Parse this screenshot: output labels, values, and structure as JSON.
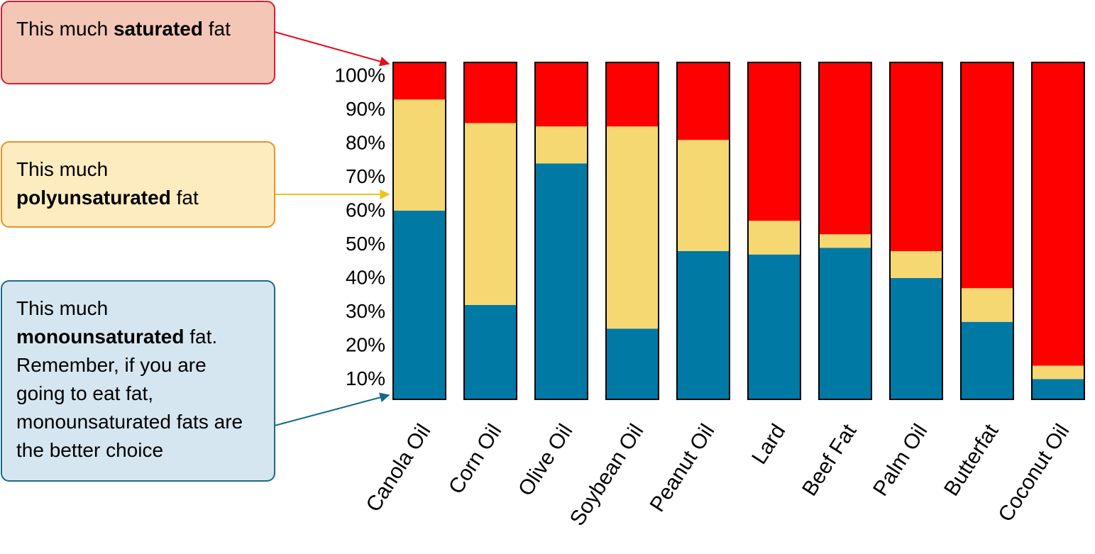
{
  "chart_data": {
    "type": "bar",
    "stacked": true,
    "categories": [
      "Canola Oil",
      "Corn Oil",
      "Olive Oil",
      "Soybean Oil",
      "Peanut Oil",
      "Lard",
      "Beef Fat",
      "Palm Oil",
      "Butterfat",
      "Coconut Oil"
    ],
    "series": [
      {
        "color": "#0079a5",
        "values": [
          56,
          28,
          70,
          21,
          44,
          43,
          45,
          36,
          23,
          6
        ]
      },
      {
        "color": "#f6d872",
        "values": [
          33,
          54,
          11,
          60,
          33,
          10,
          4,
          8,
          10,
          4
        ]
      },
      {
        "color": "#ff0000",
        "values": [
          11,
          18,
          19,
          19,
          23,
          47,
          51,
          56,
          67,
          90
        ]
      }
    ],
    "ylim": [
      0,
      100
    ],
    "yticks": [
      {
        "value": 10,
        "label": "10%"
      },
      {
        "value": 20,
        "label": "20%"
      },
      {
        "value": 30,
        "label": "30%"
      },
      {
        "value": 40,
        "label": "40%"
      },
      {
        "value": 50,
        "label": "50%"
      },
      {
        "value": 60,
        "label": "60%"
      },
      {
        "value": 70,
        "label": "70%"
      },
      {
        "value": 80,
        "label": "80%"
      },
      {
        "value": 90,
        "label": "90%"
      },
      {
        "value": 100,
        "label": "100%"
      }
    ],
    "grid": false
  },
  "annotations": [
    [
      "This much ",
      "saturated",
      " fat"
    ],
    [
      "This much ",
      "polyunsaturated",
      " fat"
    ],
    [
      "This much ",
      "monounsaturated",
      " fat. Remember, if you are going to eat fat, monounsaturated fats are the better choice"
    ]
  ]
}
